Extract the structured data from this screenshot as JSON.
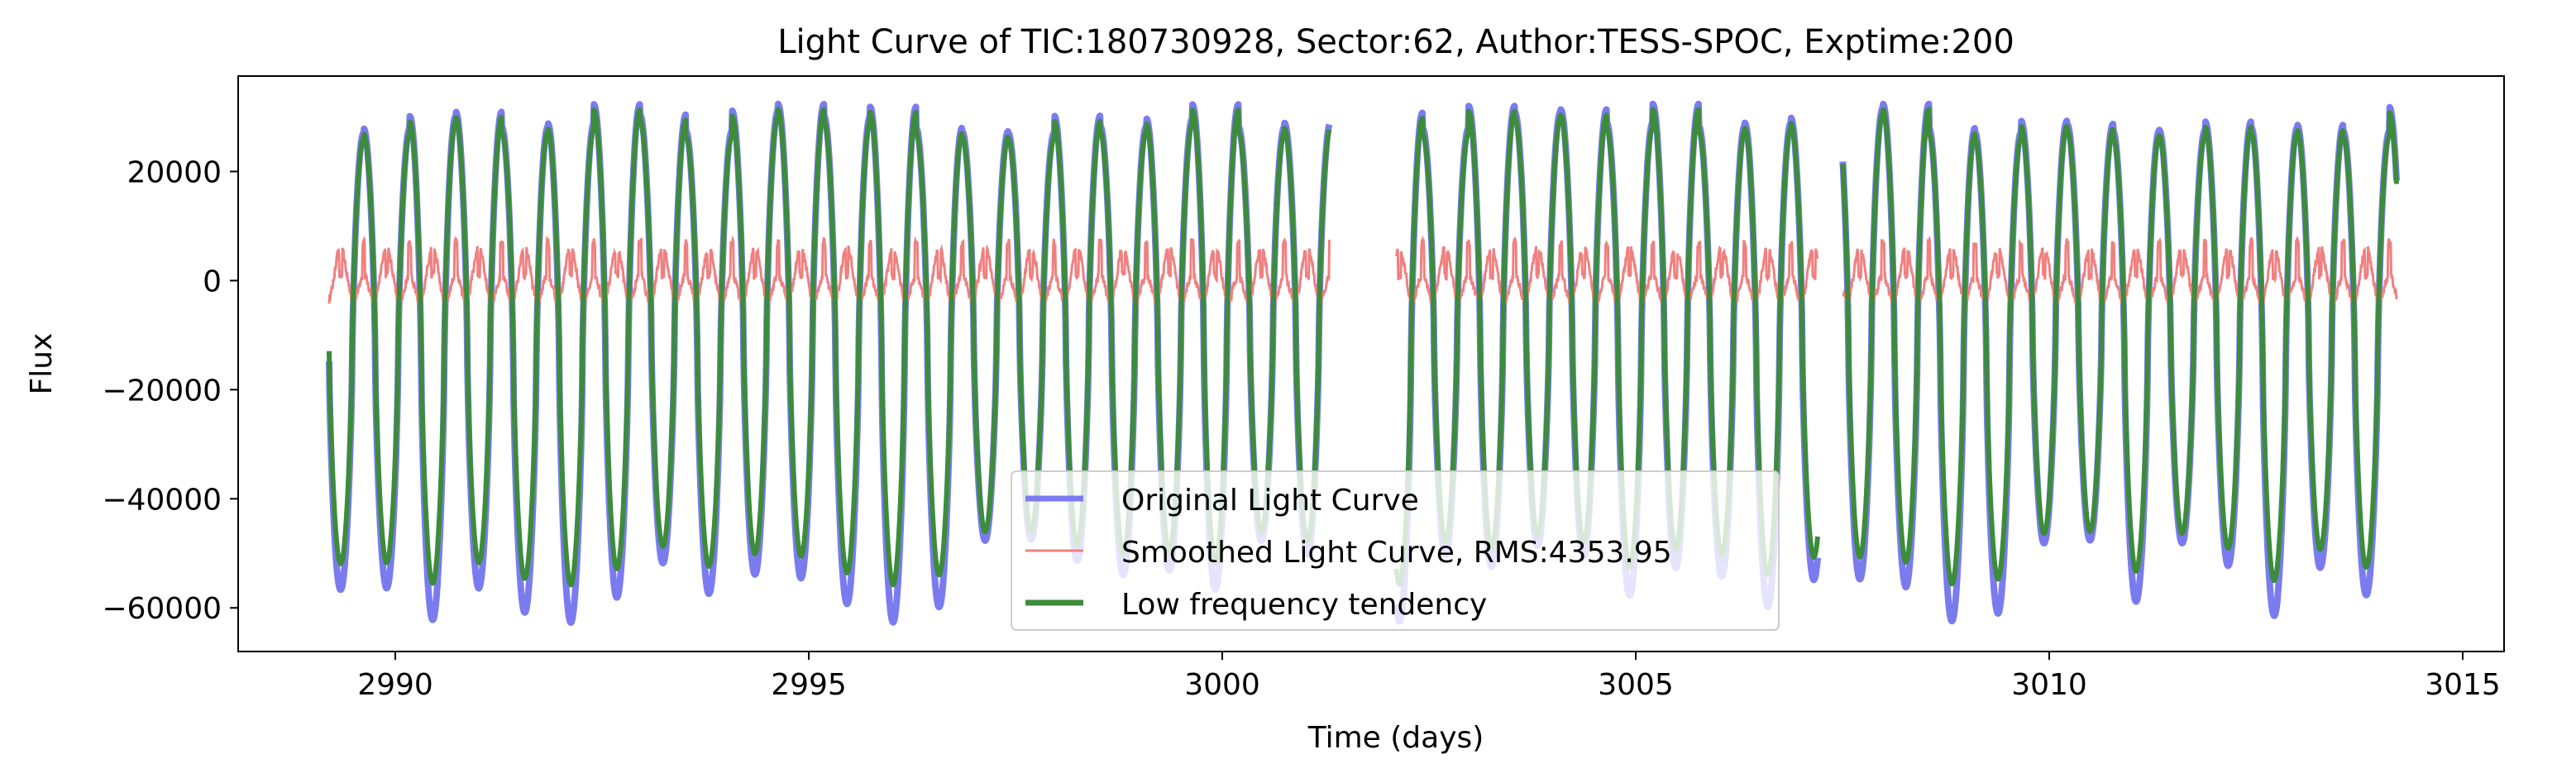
{
  "chart_data": {
    "type": "line",
    "title": "Light Curve of TIC:180730928, Sector:62, Author:TESS-SPOC, Exptime:200",
    "xlabel": "Time (days)",
    "ylabel": "Flux",
    "xlim": [
      2988.1,
      3015.5
    ],
    "ylim": [
      -68000,
      37500
    ],
    "xticks": [
      2990,
      2995,
      3000,
      3005,
      3010,
      3015
    ],
    "yticks": [
      -60000,
      -40000,
      -20000,
      0,
      20000
    ],
    "xtick_labels": [
      "2990",
      "2995",
      "3000",
      "3005",
      "3010",
      "3015"
    ],
    "ytick_labels": [
      "−60000",
      "−40000",
      "−20000",
      "0",
      "20000"
    ],
    "grid": false,
    "legend_position": "lower-center",
    "period_days": 0.5567,
    "time_range": [
      2989.2,
      3014.2
    ],
    "gaps": [
      [
        3001.3,
        3002.1
      ],
      [
        3007.2,
        3007.5
      ]
    ],
    "series": [
      {
        "name": "Original Light Curve",
        "color": "#7b7bf0",
        "style": "wide-line",
        "alpha": 0.5,
        "peak_flux_range": [
          27000,
          32500
        ],
        "trough_flux_range": [
          -63000,
          -46000
        ]
      },
      {
        "name": "Smoothed Light Curve, RMS:4353.95",
        "color": "#f08080",
        "style": "thin-line",
        "flux_range": [
          -10000,
          10000
        ],
        "rms": 4353.95
      },
      {
        "name": "Low frequency tendency",
        "color": "#3c8c3c",
        "style": "thick-line",
        "peak_flux_range": [
          26000,
          31500
        ],
        "trough_flux_range": [
          -56000,
          -45000
        ]
      }
    ]
  }
}
